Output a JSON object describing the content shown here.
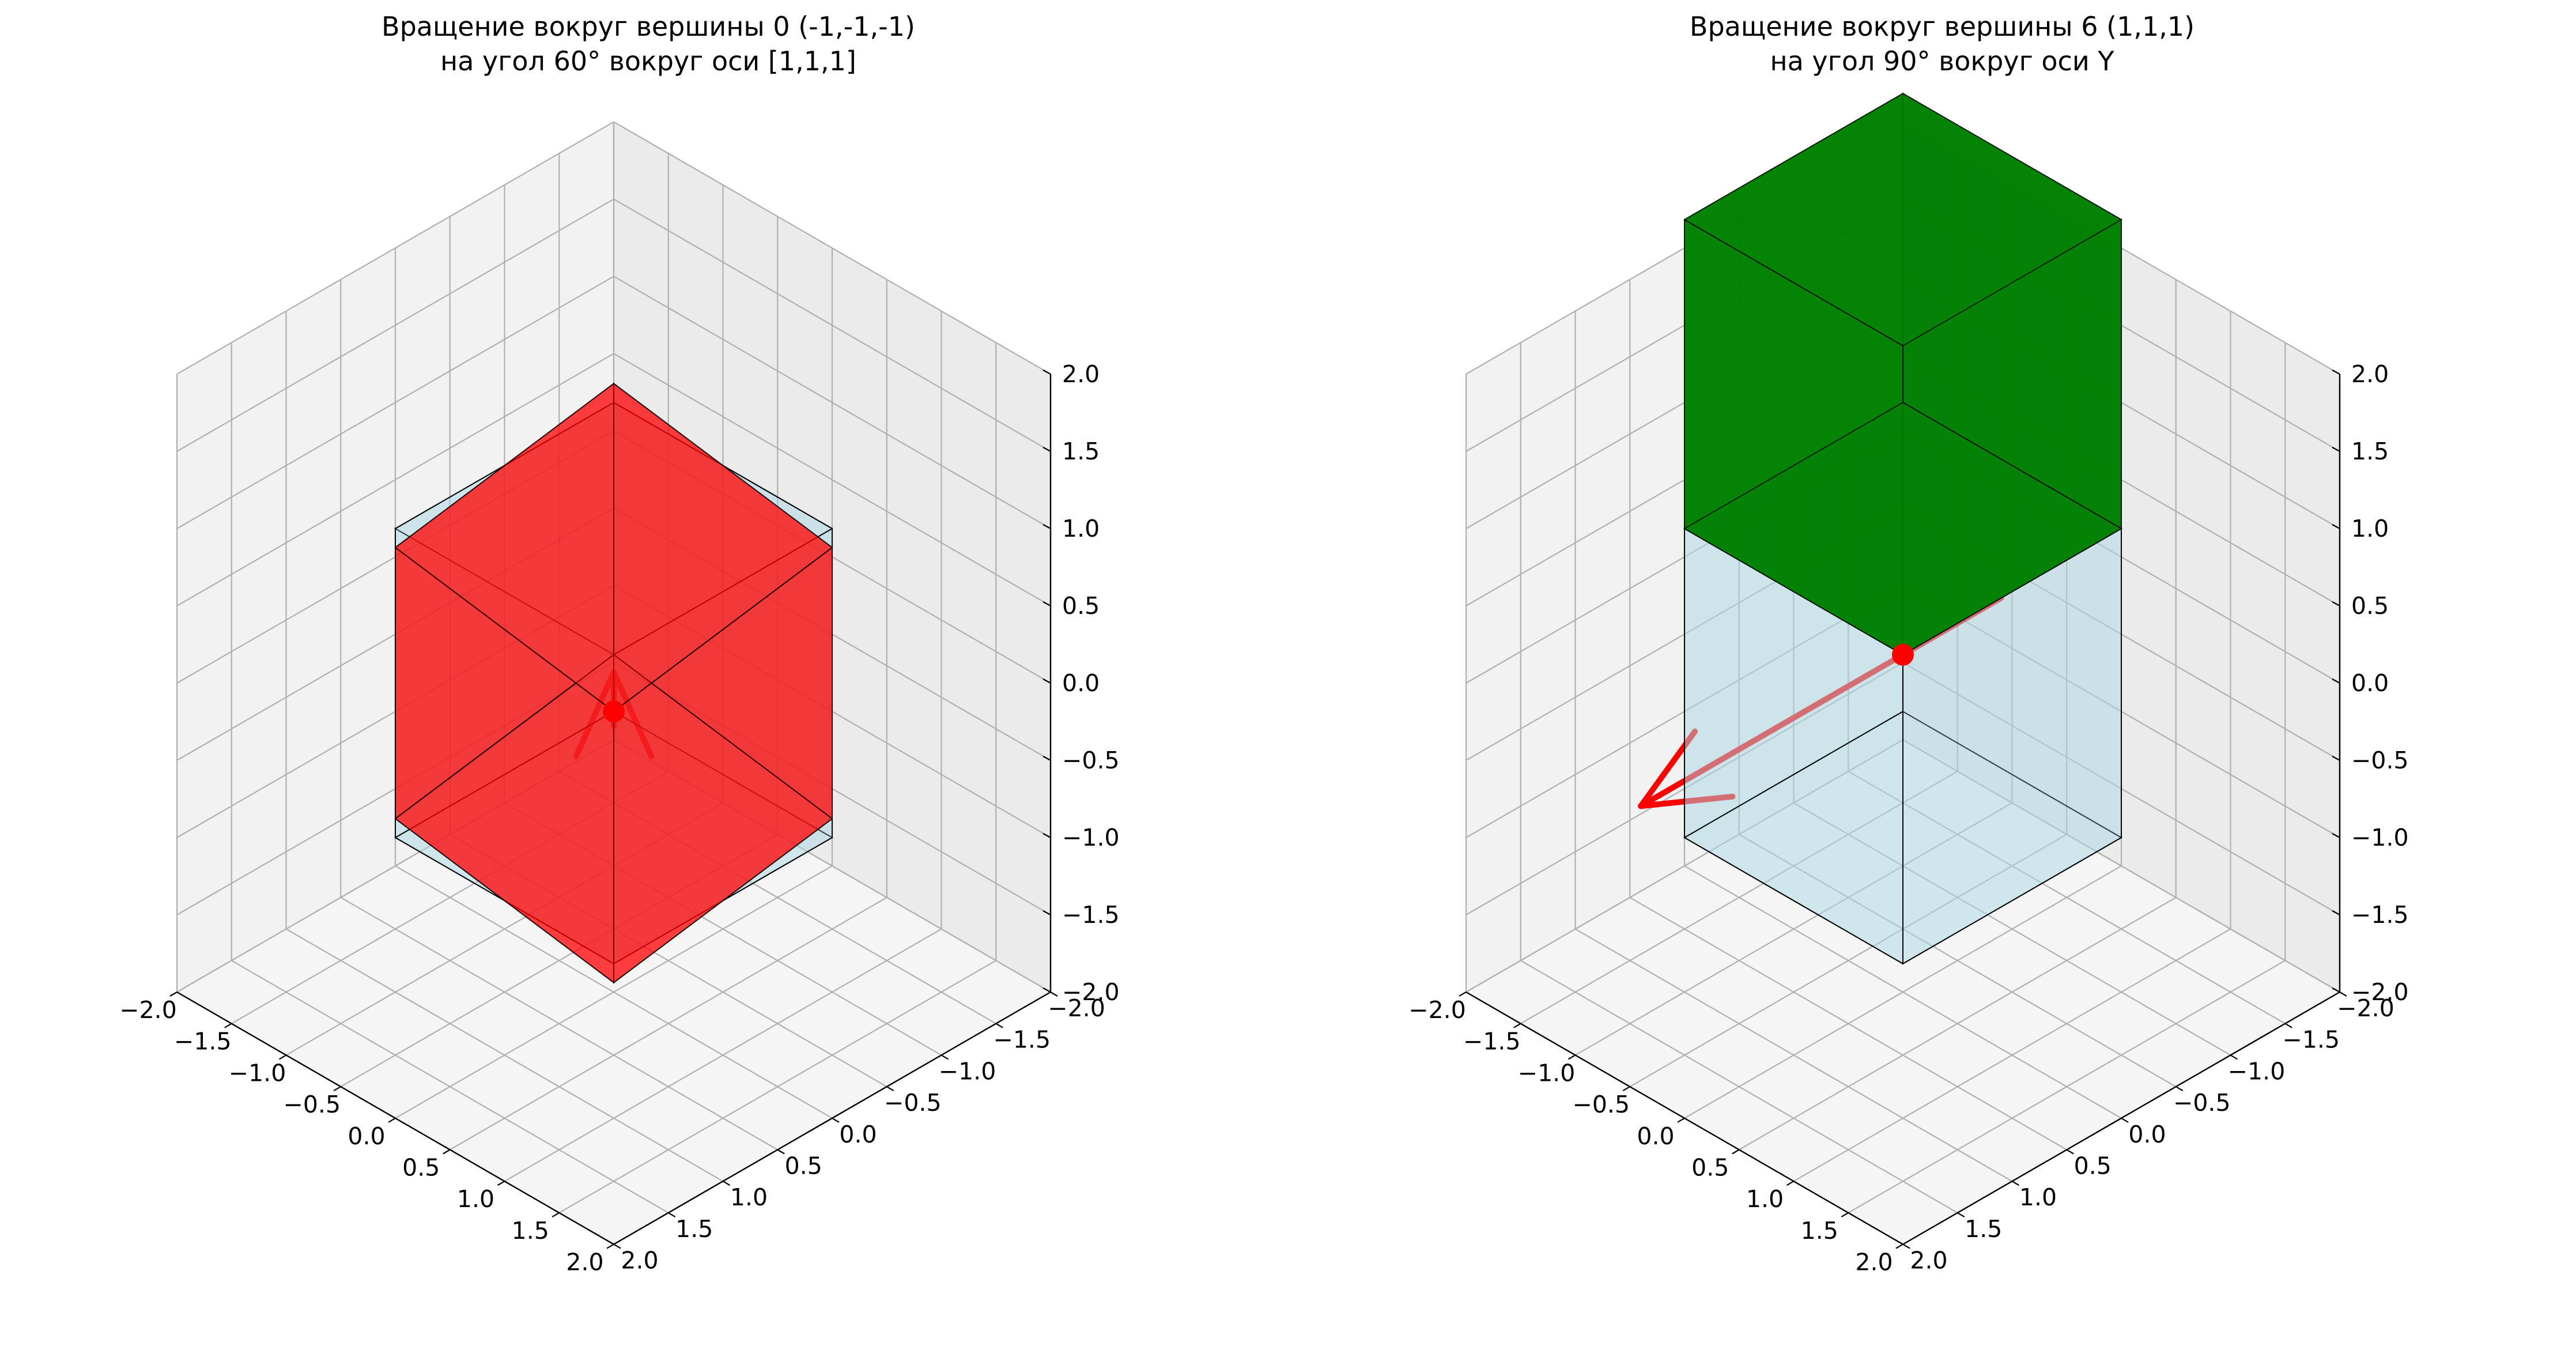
{
  "chart_data": [
    {
      "type": "3d-surface",
      "title_line1": "Вращение вокруг вершины 0 (-1,-1,-1)",
      "title_line2": "на угол 60° вокруг оси [1,1,1]",
      "xlim": [
        -2,
        2
      ],
      "ylim": [
        -2,
        2
      ],
      "zlim": [
        -2,
        2
      ],
      "x_ticks": [
        "−2.0",
        "−1.5",
        "−1.0",
        "−0.5",
        "0.0",
        "0.5",
        "1.0",
        "1.5",
        "2.0"
      ],
      "y_ticks": [
        "−2.0",
        "−1.5",
        "−1.0",
        "−0.5",
        "0.0",
        "0.5",
        "1.0",
        "1.5",
        "2.0"
      ],
      "z_ticks": [
        "−2.0",
        "−1.5",
        "−1.0",
        "−0.5",
        "0.0",
        "0.5",
        "1.0",
        "1.5",
        "2.0"
      ],
      "grid": true,
      "original_cube": {
        "vertices": [
          [
            -1,
            -1,
            -1
          ],
          [
            1,
            -1,
            -1
          ],
          [
            1,
            1,
            -1
          ],
          [
            -1,
            1,
            -1
          ],
          [
            -1,
            -1,
            1
          ],
          [
            1,
            -1,
            1
          ],
          [
            1,
            1,
            1
          ],
          [
            -1,
            1,
            1
          ]
        ],
        "color": "#add8e6"
      },
      "rotated_cube": {
        "pivot_vertex": 0,
        "pivot": [
          -1,
          -1,
          -1
        ],
        "axis": [
          1,
          1,
          1
        ],
        "angle_deg": 60,
        "color": "#ff0000"
      },
      "pivot_marker": {
        "point": [
          -1,
          -1,
          -1
        ],
        "color": "#ff0000"
      },
      "axis_arrow": {
        "origin": [
          -1,
          -1,
          -1
        ],
        "direction": [
          1,
          1,
          1
        ],
        "color": "#ff0000"
      }
    },
    {
      "type": "3d-surface",
      "title_line1": "Вращение вокруг вершины 6 (1,1,1)",
      "title_line2": "на угол 90° вокруг оси Y",
      "xlim": [
        -2,
        2
      ],
      "ylim": [
        -2,
        2
      ],
      "zlim": [
        -2,
        2
      ],
      "x_ticks": [
        "−2.0",
        "−1.5",
        "−1.0",
        "−0.5",
        "0.0",
        "0.5",
        "1.0",
        "1.5",
        "2.0"
      ],
      "y_ticks": [
        "−2.0",
        "−1.5",
        "−1.0",
        "−0.5",
        "0.0",
        "0.5",
        "1.0",
        "1.5",
        "2.0"
      ],
      "z_ticks": [
        "−2.0",
        "−1.5",
        "−1.0",
        "−0.5",
        "0.0",
        "0.5",
        "1.0",
        "1.5",
        "2.0"
      ],
      "grid": true,
      "original_cube": {
        "vertices": [
          [
            -1,
            -1,
            -1
          ],
          [
            1,
            -1,
            -1
          ],
          [
            1,
            1,
            -1
          ],
          [
            -1,
            1,
            -1
          ],
          [
            -1,
            -1,
            1
          ],
          [
            1,
            -1,
            1
          ],
          [
            1,
            1,
            1
          ],
          [
            -1,
            1,
            1
          ]
        ],
        "color": "#add8e6"
      },
      "rotated_cube": {
        "pivot_vertex": 6,
        "pivot": [
          1,
          1,
          1
        ],
        "axis": [
          0,
          1,
          0
        ],
        "angle_deg": 90,
        "color": "#008000"
      },
      "pivot_marker": {
        "point": [
          1,
          1,
          1
        ],
        "color": "#ff0000"
      },
      "axis_arrow": {
        "origin": [
          1,
          1,
          1
        ],
        "direction": [
          0,
          1,
          0
        ],
        "color": "#ff0000"
      }
    }
  ]
}
